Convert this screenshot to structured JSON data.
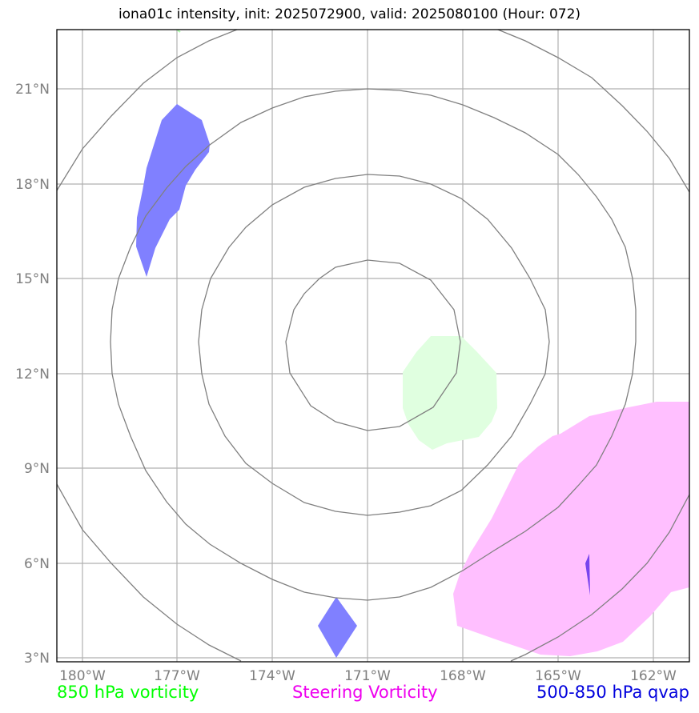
{
  "title": "iona01c intensity, init: 2025072900, valid: 2025080100 (Hour: 072)",
  "axes": {
    "lon_ticks": [
      "180°W",
      "177°W",
      "174°W",
      "171°W",
      "168°W",
      "165°W",
      "162°W"
    ],
    "lat_ticks": [
      "21°N",
      "18°N",
      "15°N",
      "12°N",
      "9°N",
      "6°N",
      "3°N"
    ]
  },
  "legend": {
    "vort850": {
      "label": "850 hPa vorticity",
      "color": "#00ff00"
    },
    "steering": {
      "label": "Steering Vorticity",
      "color": "#ee00ee"
    },
    "qvap": {
      "label": "500-850 hPa qvap",
      "color": "#0000dd"
    }
  },
  "layer_colors": {
    "qvap_fill": "#8080ff",
    "steering_fill": "#ffbfff",
    "vort850_fill": "#e0ffe0",
    "range_rings": "#808080",
    "grid": "#b0b0b0"
  }
}
